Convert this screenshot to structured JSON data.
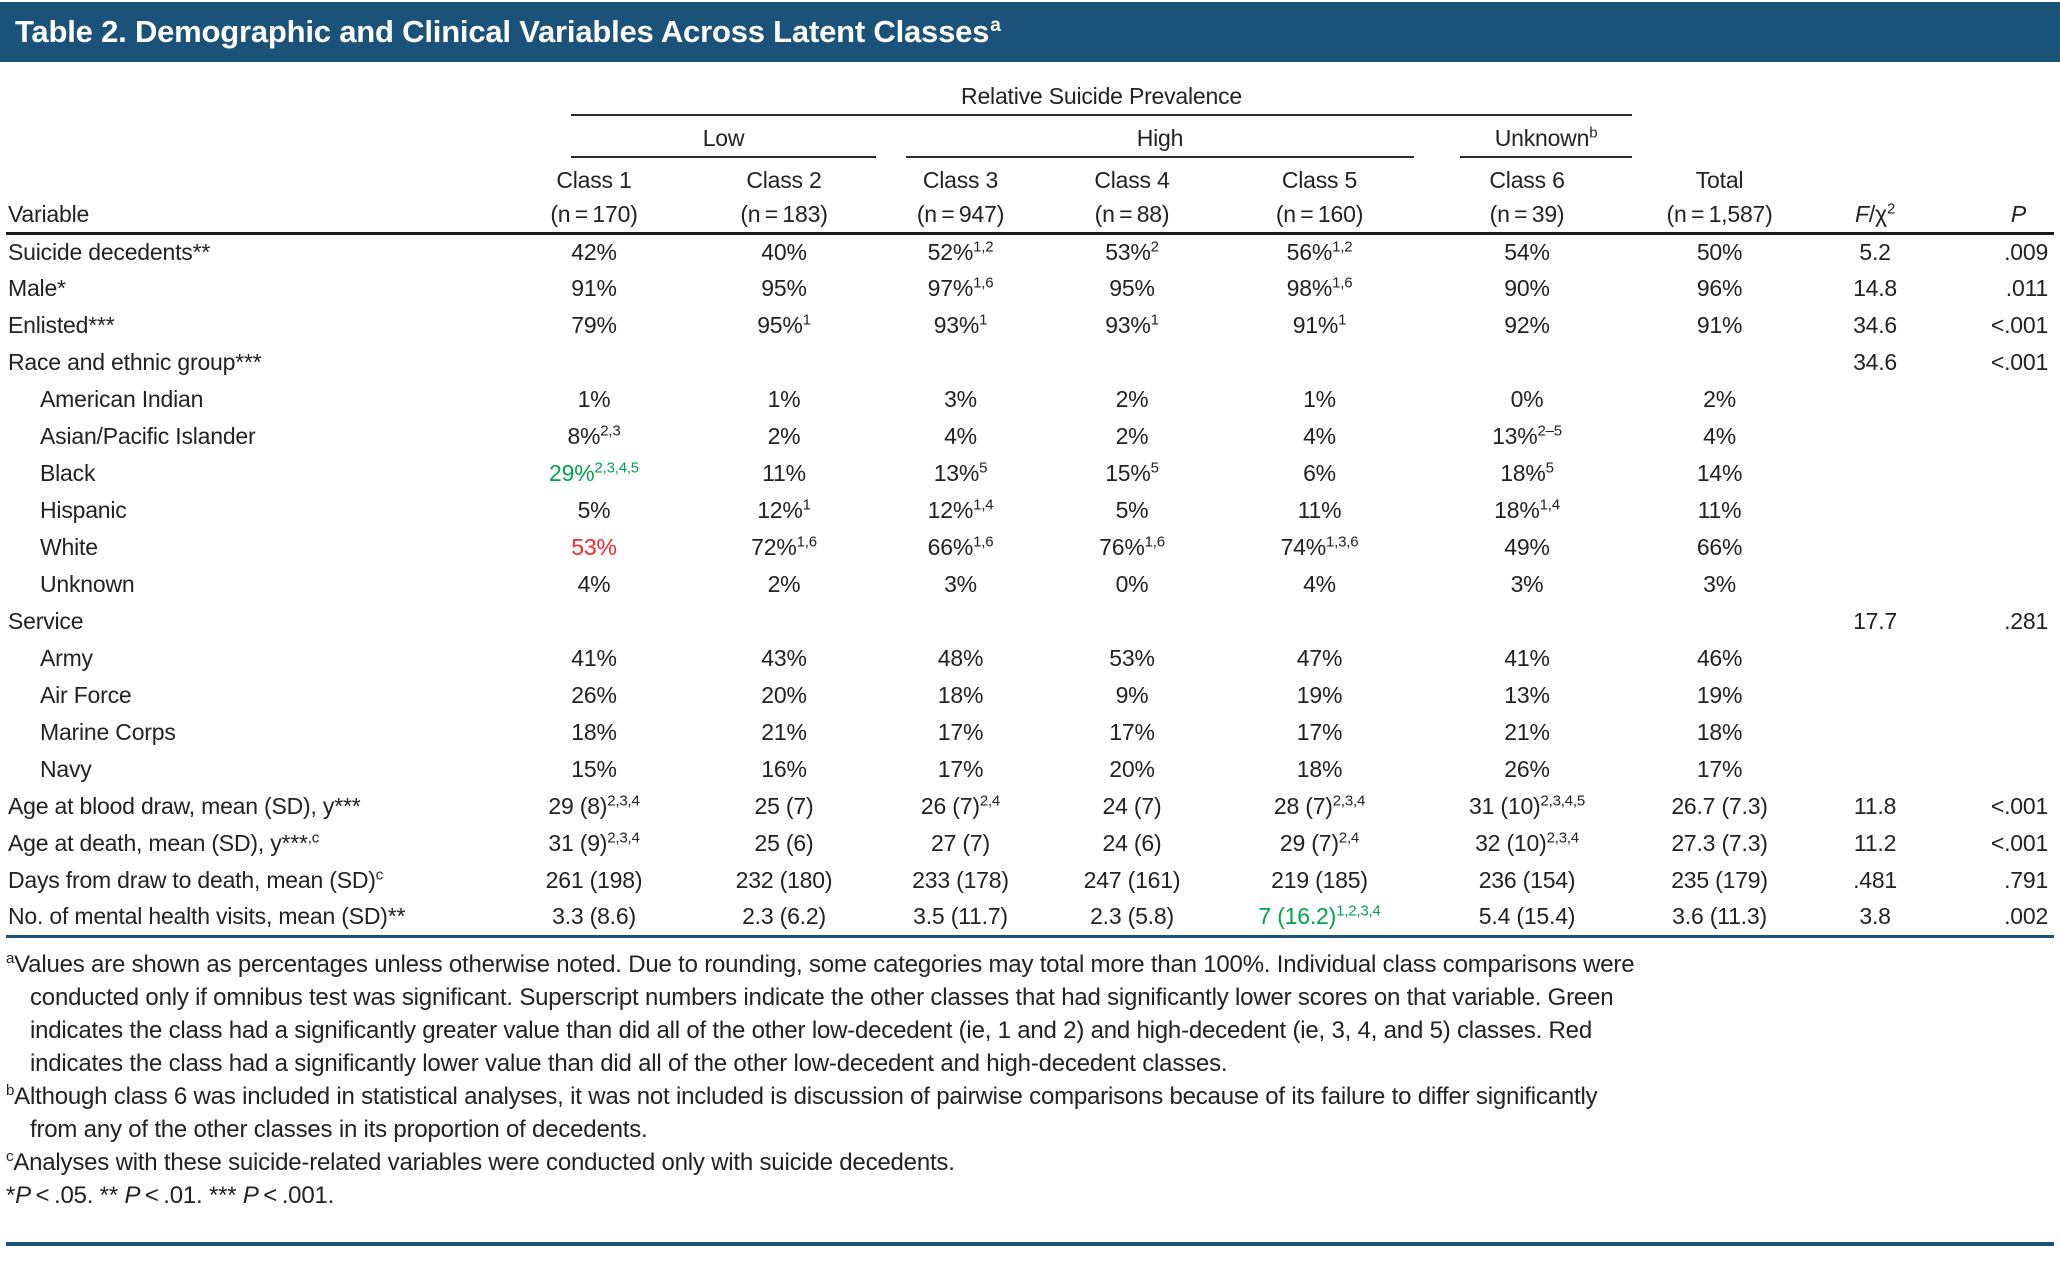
{
  "colors": {
    "header_bar": "#1a5279",
    "rule_blue": "#1a5279",
    "text": "#232122",
    "green": "#00a44f",
    "red": "#ef2b2d"
  },
  "title": {
    "text": "Table 2. Demographic and Clinical Variables Across Latent Classes",
    "sup": "a"
  },
  "header": {
    "group_top": "Relative Suicide Prevalence",
    "groups": [
      {
        "label": "Low"
      },
      {
        "label": "High"
      },
      {
        "label": "Unknown",
        "sup": "b"
      }
    ],
    "variable_label": "Variable",
    "classes": [
      {
        "name": "Class 1",
        "n": "(n = 170)"
      },
      {
        "name": "Class 2",
        "n": "(n = 183)"
      },
      {
        "name": "Class 3",
        "n": "(n = 947)"
      },
      {
        "name": "Class 4",
        "n": "(n = 88)"
      },
      {
        "name": "Class 5",
        "n": "(n = 160)"
      },
      {
        "name": "Class 6",
        "n": "(n = 39)"
      }
    ],
    "total": {
      "name": "Total",
      "n": "(n = 1,587)"
    },
    "stats": {
      "f": "F",
      "chi": "/χ",
      "chi_sup": "2",
      "p": "P"
    }
  },
  "rows": [
    {
      "label": "Suicide decedents**",
      "indent": false,
      "cells": [
        {
          "v": "42%"
        },
        {
          "v": "40%"
        },
        {
          "v": "52%",
          "sup": "1,2"
        },
        {
          "v": "53%",
          "sup": "2"
        },
        {
          "v": "56%",
          "sup": "1,2"
        },
        {
          "v": "54%"
        },
        {
          "v": "50%"
        }
      ],
      "f": "5.2",
      "p": ".009"
    },
    {
      "label": "Male*",
      "indent": false,
      "cells": [
        {
          "v": "91%"
        },
        {
          "v": "95%"
        },
        {
          "v": "97%",
          "sup": "1,6"
        },
        {
          "v": "95%"
        },
        {
          "v": "98%",
          "sup": "1,6"
        },
        {
          "v": "90%"
        },
        {
          "v": "96%"
        }
      ],
      "f": "14.8",
      "p": ".011"
    },
    {
      "label": "Enlisted***",
      "indent": false,
      "cells": [
        {
          "v": "79%"
        },
        {
          "v": "95%",
          "sup": "1"
        },
        {
          "v": "93%",
          "sup": "1"
        },
        {
          "v": "93%",
          "sup": "1"
        },
        {
          "v": "91%",
          "sup": "1"
        },
        {
          "v": "92%"
        },
        {
          "v": "91%"
        }
      ],
      "f": "34.6",
      "p": "<.001"
    },
    {
      "label": "Race and ethnic group***",
      "indent": false,
      "cells": [
        {
          "v": ""
        },
        {
          "v": ""
        },
        {
          "v": ""
        },
        {
          "v": ""
        },
        {
          "v": ""
        },
        {
          "v": ""
        },
        {
          "v": ""
        }
      ],
      "f": "34.6",
      "p": "<.001"
    },
    {
      "label": "American Indian",
      "indent": true,
      "cells": [
        {
          "v": "1%"
        },
        {
          "v": "1%"
        },
        {
          "v": "3%"
        },
        {
          "v": "2%"
        },
        {
          "v": "1%"
        },
        {
          "v": "0%"
        },
        {
          "v": "2%"
        }
      ],
      "f": "",
      "p": ""
    },
    {
      "label": "Asian/Pacific Islander",
      "indent": true,
      "cells": [
        {
          "v": "8%",
          "sup": "2,3"
        },
        {
          "v": "2%"
        },
        {
          "v": "4%"
        },
        {
          "v": "2%"
        },
        {
          "v": "4%"
        },
        {
          "v": "13%",
          "sup": "2–5"
        },
        {
          "v": "4%"
        }
      ],
      "f": "",
      "p": ""
    },
    {
      "label": "Black",
      "indent": true,
      "cells": [
        {
          "v": "29%",
          "sup": "2,3,4,5",
          "c": "green"
        },
        {
          "v": "11%"
        },
        {
          "v": "13%",
          "sup": "5"
        },
        {
          "v": "15%",
          "sup": "5"
        },
        {
          "v": "6%"
        },
        {
          "v": "18%",
          "sup": "5"
        },
        {
          "v": "14%"
        }
      ],
      "f": "",
      "p": ""
    },
    {
      "label": "Hispanic",
      "indent": true,
      "cells": [
        {
          "v": "5%"
        },
        {
          "v": "12%",
          "sup": "1"
        },
        {
          "v": "12%",
          "sup": "1,4"
        },
        {
          "v": "5%"
        },
        {
          "v": "11%"
        },
        {
          "v": "18%",
          "sup": "1,4"
        },
        {
          "v": "11%"
        }
      ],
      "f": "",
      "p": ""
    },
    {
      "label": "White",
      "indent": true,
      "cells": [
        {
          "v": "53%",
          "c": "red"
        },
        {
          "v": "72%",
          "sup": "1,6"
        },
        {
          "v": "66%",
          "sup": "1,6"
        },
        {
          "v": "76%",
          "sup": "1,6"
        },
        {
          "v": "74%",
          "sup": "1,3,6"
        },
        {
          "v": "49%"
        },
        {
          "v": "66%"
        }
      ],
      "f": "",
      "p": ""
    },
    {
      "label": "Unknown",
      "indent": true,
      "cells": [
        {
          "v": "4%"
        },
        {
          "v": "2%"
        },
        {
          "v": "3%"
        },
        {
          "v": "0%"
        },
        {
          "v": "4%"
        },
        {
          "v": "3%"
        },
        {
          "v": "3%"
        }
      ],
      "f": "",
      "p": ""
    },
    {
      "label": "Service",
      "indent": false,
      "cells": [
        {
          "v": ""
        },
        {
          "v": ""
        },
        {
          "v": ""
        },
        {
          "v": ""
        },
        {
          "v": ""
        },
        {
          "v": ""
        },
        {
          "v": ""
        }
      ],
      "f": "17.7",
      "p": ".281"
    },
    {
      "label": "Army",
      "indent": true,
      "cells": [
        {
          "v": "41%"
        },
        {
          "v": "43%"
        },
        {
          "v": "48%"
        },
        {
          "v": "53%"
        },
        {
          "v": "47%"
        },
        {
          "v": "41%"
        },
        {
          "v": "46%"
        }
      ],
      "f": "",
      "p": ""
    },
    {
      "label": "Air Force",
      "indent": true,
      "cells": [
        {
          "v": "26%"
        },
        {
          "v": "20%"
        },
        {
          "v": "18%"
        },
        {
          "v": "9%"
        },
        {
          "v": "19%"
        },
        {
          "v": "13%"
        },
        {
          "v": "19%"
        }
      ],
      "f": "",
      "p": ""
    },
    {
      "label": "Marine Corps",
      "indent": true,
      "cells": [
        {
          "v": "18%"
        },
        {
          "v": "21%"
        },
        {
          "v": "17%"
        },
        {
          "v": "17%"
        },
        {
          "v": "17%"
        },
        {
          "v": "21%"
        },
        {
          "v": "18%"
        }
      ],
      "f": "",
      "p": ""
    },
    {
      "label": "Navy",
      "indent": true,
      "cells": [
        {
          "v": "15%"
        },
        {
          "v": "16%"
        },
        {
          "v": "17%"
        },
        {
          "v": "20%"
        },
        {
          "v": "18%"
        },
        {
          "v": "26%"
        },
        {
          "v": "17%"
        }
      ],
      "f": "",
      "p": ""
    },
    {
      "label": "Age at blood draw, mean (SD), y***",
      "indent": false,
      "cells": [
        {
          "v": "29 (8)",
          "sup": "2,3,4"
        },
        {
          "v": "25 (7)"
        },
        {
          "v": "26 (7)",
          "sup": "2,4"
        },
        {
          "v": "24 (7)"
        },
        {
          "v": "28 (7)",
          "sup": "2,3,4"
        },
        {
          "v": "31 (10)",
          "sup": "2,3,4,5"
        },
        {
          "v": "26.7 (7.3)"
        }
      ],
      "f": "11.8",
      "p": "<.001"
    },
    {
      "label": "Age at death, mean (SD), y***",
      "label_sup": ",c",
      "indent": false,
      "cells": [
        {
          "v": "31 (9)",
          "sup": "2,3,4"
        },
        {
          "v": "25 (6)"
        },
        {
          "v": "27 (7)"
        },
        {
          "v": "24 (6)"
        },
        {
          "v": "29 (7)",
          "sup": "2,4"
        },
        {
          "v": "32 (10)",
          "sup": "2,3,4"
        },
        {
          "v": "27.3 (7.3)"
        }
      ],
      "f": "11.2",
      "p": "<.001"
    },
    {
      "label": "Days from draw to death, mean (SD)",
      "label_sup": "c",
      "indent": false,
      "cells": [
        {
          "v": "261 (198)"
        },
        {
          "v": "232 (180)"
        },
        {
          "v": "233 (178)"
        },
        {
          "v": "247 (161)"
        },
        {
          "v": "219 (185)"
        },
        {
          "v": "236 (154)"
        },
        {
          "v": "235 (179)"
        }
      ],
      "f": ".481",
      "p": ".791"
    },
    {
      "label": "No. of mental health visits, mean (SD)**",
      "indent": false,
      "cells": [
        {
          "v": "3.3 (8.6)"
        },
        {
          "v": "2.3 (6.2)"
        },
        {
          "v": "3.5 (11.7)"
        },
        {
          "v": "2.3 (5.8)"
        },
        {
          "v": "7 (16.2)",
          "sup": "1,2,3,4",
          "c": "green"
        },
        {
          "v": "5.4 (15.4)"
        },
        {
          "v": "3.6 (11.3)"
        }
      ],
      "f": "3.8",
      "p": ".002"
    }
  ],
  "footnotes": [
    {
      "sup": "a",
      "cont": false,
      "text": "Values are shown as percentages unless otherwise noted. Due to rounding, some categories may total more than 100%. Individual class comparisons were"
    },
    {
      "sup": "",
      "cont": true,
      "text": "conducted only if omnibus test was significant. Superscript numbers indicate the other classes that had significantly lower scores on that variable. Green"
    },
    {
      "sup": "",
      "cont": true,
      "text": "indicates the class had a significantly greater value than did all of the other low-decedent (ie, 1 and 2) and high-decedent (ie, 3, 4, and 5) classes. Red"
    },
    {
      "sup": "",
      "cont": true,
      "text": "indicates the class had a significantly lower value than did all of the other low-decedent and high-decedent classes."
    },
    {
      "sup": "b",
      "cont": false,
      "text": "Although class 6 was included in statistical analyses, it was not included is discussion of pairwise comparisons because of its failure to differ significantly"
    },
    {
      "sup": "",
      "cont": true,
      "text": "from any of the other classes in its proportion of decedents."
    },
    {
      "sup": "c",
      "cont": false,
      "text": "Analyses with these suicide-related variables were conducted only with suicide decedents."
    },
    {
      "sup": "",
      "cont": false,
      "segments": [
        {
          "t": "*"
        },
        {
          "t": "P",
          "i": true
        },
        {
          "t": " < .05. ** "
        },
        {
          "t": "P",
          "i": true
        },
        {
          "t": " < .01. *** "
        },
        {
          "t": "P",
          "i": true
        },
        {
          "t": " < .001."
        }
      ]
    }
  ]
}
